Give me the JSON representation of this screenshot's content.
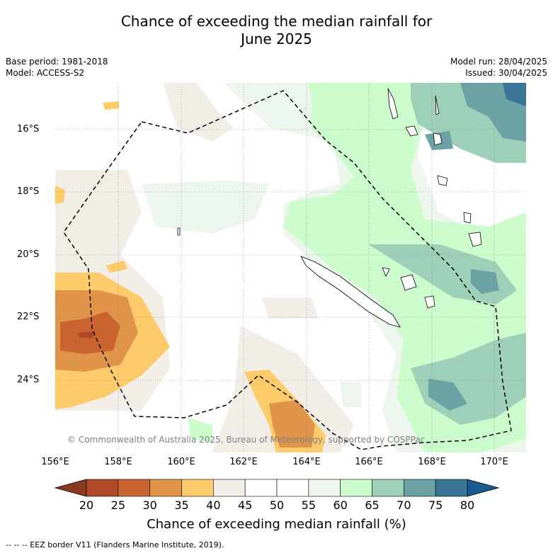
{
  "title_line1": "Chance of exceeding the median rainfall for",
  "title_line2": "June 2025",
  "base_period": "Base period: 1981-2018",
  "model": "Model: ACCESS-S2",
  "model_run": "Model run: 28/04/2025",
  "issued": "Issued: 30/04/2025",
  "copyright": "© Commonwealth of Australia 2025, Bureau of Meteorology, supported by COSPPac",
  "footnote": "--  --  -- EEZ border V11 (Flanders Marine Institute, 2019).",
  "map": {
    "lat_ticks": [
      "16°S",
      "18°S",
      "20°S",
      "22°S",
      "24°S"
    ],
    "lon_ticks": [
      "156°E",
      "158°E",
      "160°E",
      "162°E",
      "164°E",
      "166°E",
      "168°E",
      "170°E"
    ],
    "extent": {
      "lon": [
        156,
        171
      ],
      "lat": [
        -14.7,
        -26.1
      ]
    }
  },
  "colorbar": {
    "title": "Chance of exceeding median rainfall (%)",
    "labels": [
      "20",
      "25",
      "30",
      "35",
      "40",
      "45",
      "50",
      "55",
      "60",
      "65",
      "70",
      "75",
      "80"
    ],
    "colors": [
      "#8a3a1e",
      "#ae4a28",
      "#c9632f",
      "#df944a",
      "#fecb6a",
      "#f3ede8",
      "#ffffff",
      "#ffffff",
      "#edf6ec",
      "#ccfccc",
      "#9ecfb8",
      "#6ba2a4",
      "#3b7697",
      "#1a5a8f"
    ]
  }
}
